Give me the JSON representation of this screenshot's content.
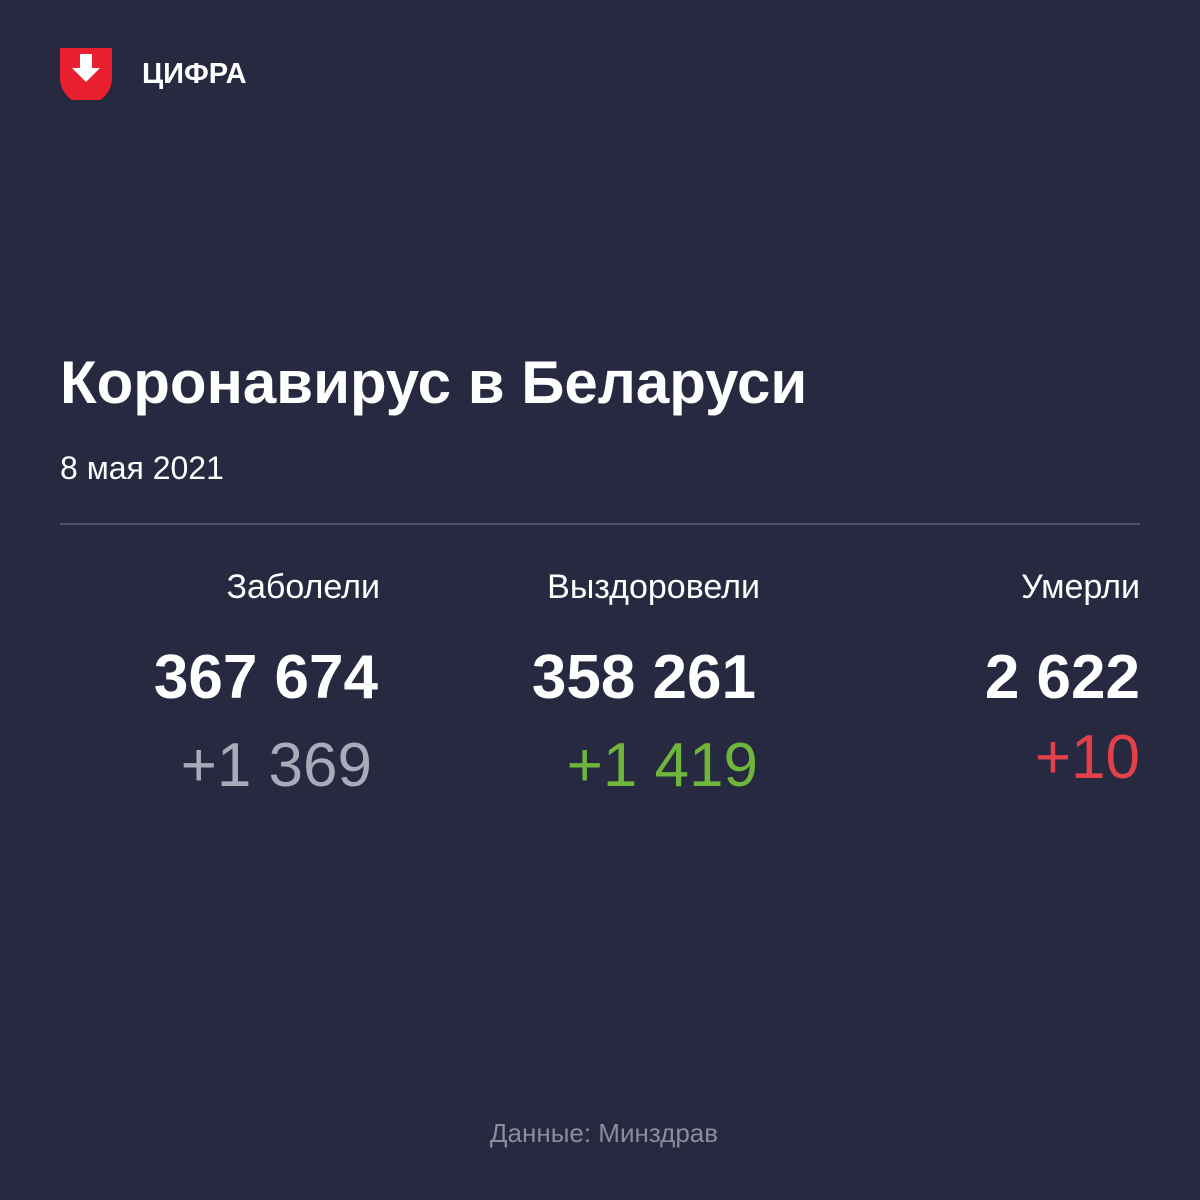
{
  "header": {
    "brand": "ЦИФРА"
  },
  "title": "Коронавирус в Беларуси",
  "date": "8 мая 2021",
  "stats": [
    {
      "label": "Заболели",
      "total": "367 674",
      "change": "+1 369"
    },
    {
      "label": "Выздоровели",
      "total": "358 261",
      "change": "+1 419"
    },
    {
      "label": "Умерли",
      "total": "2 622",
      "change": "+10"
    }
  ],
  "source": "Данные: Минздрав"
}
